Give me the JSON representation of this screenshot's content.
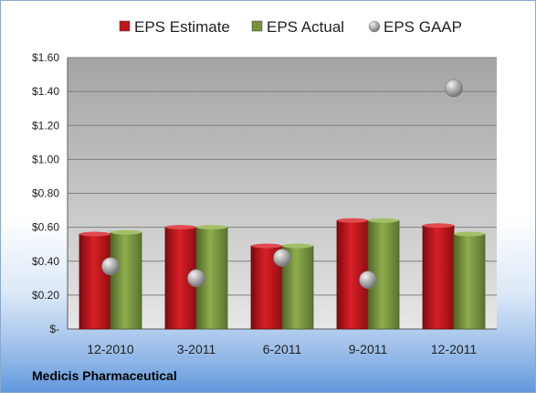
{
  "company_label": "Medicis Pharmaceutical",
  "colors": {
    "estimate": "#c0161c",
    "actual": "#76923c",
    "gaap": "#a6a6a6",
    "plot_top": "#a4a4a4",
    "plot_bottom": "#e6e6e6"
  },
  "chart_data": {
    "type": "bar",
    "title": "",
    "xlabel": "",
    "ylabel": "",
    "categories": [
      "12-2010",
      "3-2011",
      "6-2011",
      "9-2011",
      "12-2011"
    ],
    "series": [
      {
        "name": "EPS Estimate",
        "kind": "bar",
        "values": [
          0.56,
          0.6,
          0.49,
          0.64,
          0.61
        ]
      },
      {
        "name": "EPS Actual",
        "kind": "bar",
        "values": [
          0.57,
          0.6,
          0.49,
          0.64,
          0.56
        ]
      },
      {
        "name": "EPS GAAP",
        "kind": "marker",
        "values": [
          0.37,
          0.3,
          0.42,
          0.29,
          1.42
        ]
      }
    ],
    "ylim": [
      0,
      1.6
    ],
    "yticks": [
      0,
      0.2,
      0.4,
      0.6,
      0.8,
      1.0,
      1.2,
      1.4,
      1.6
    ],
    "ytick_labels": [
      "$-",
      "$0.20",
      "$0.40",
      "$0.60",
      "$0.80",
      "$1.00",
      "$1.20",
      "$1.40",
      "$1.60"
    ],
    "grid": true,
    "legend_position": "top"
  }
}
